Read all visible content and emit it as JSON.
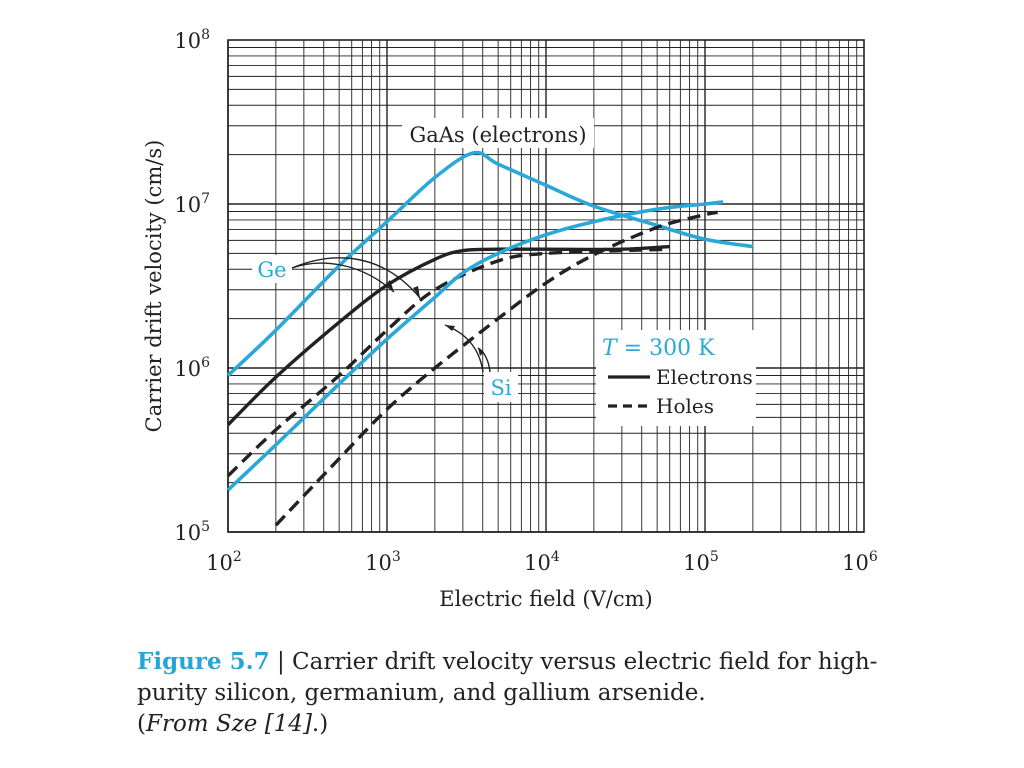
{
  "chart_data": {
    "type": "line",
    "x_scale": "log",
    "y_scale": "log",
    "xlim": [
      100,
      1000000
    ],
    "ylim": [
      100000,
      100000000
    ],
    "x_ticks": [
      {
        "base": "10",
        "exp": "2"
      },
      {
        "base": "10",
        "exp": "3"
      },
      {
        "base": "10",
        "exp": "4"
      },
      {
        "base": "10",
        "exp": "5"
      },
      {
        "base": "10",
        "exp": "6"
      }
    ],
    "y_ticks": [
      {
        "base": "10",
        "exp": "5"
      },
      {
        "base": "10",
        "exp": "6"
      },
      {
        "base": "10",
        "exp": "7"
      },
      {
        "base": "10",
        "exp": "8"
      }
    ],
    "xlabel": "Electric field (V/cm)",
    "ylabel": "Carrier drift velocity (cm/s)",
    "grid": true,
    "annotations": {
      "gaas": "GaAs (electrons)",
      "ge": "Ge",
      "si": "Si"
    },
    "legend": {
      "position": "right-middle",
      "temperature_italic": "T",
      "temperature_rest": " = 300 K",
      "electrons": "Electrons",
      "holes": "Holes"
    },
    "colors": {
      "material_blue": "#2aa8d8",
      "black": "#222222",
      "grid": "#222222"
    },
    "series": [
      {
        "name": "GaAs (electrons)",
        "material": "GaAs",
        "carrier": "electrons",
        "style": "solid",
        "color": "blue",
        "points": [
          [
            100,
            900000
          ],
          [
            200,
            1700000
          ],
          [
            500,
            4200000
          ],
          [
            1000,
            7800000
          ],
          [
            2000,
            14500000
          ],
          [
            3500,
            20500000
          ],
          [
            5000,
            17500000
          ],
          [
            10000,
            13000000
          ],
          [
            20000,
            9700000
          ],
          [
            50000,
            7400000
          ],
          [
            100000,
            6100000
          ],
          [
            200000,
            5500000
          ]
        ]
      },
      {
        "name": "Ge electrons",
        "material": "Ge",
        "carrier": "electrons",
        "style": "solid",
        "color": "black",
        "points": [
          [
            100,
            450000
          ],
          [
            200,
            880000
          ],
          [
            500,
            1900000
          ],
          [
            1000,
            3200000
          ],
          [
            2000,
            4600000
          ],
          [
            3000,
            5200000
          ],
          [
            5000,
            5300000
          ],
          [
            10000,
            5300000
          ],
          [
            30000,
            5300000
          ],
          [
            60000,
            5500000
          ]
        ]
      },
      {
        "name": "Ge holes",
        "material": "Ge",
        "carrier": "holes",
        "style": "dashed",
        "color": "black",
        "points": [
          [
            100,
            220000
          ],
          [
            200,
            420000
          ],
          [
            500,
            900000
          ],
          [
            1000,
            1700000
          ],
          [
            2000,
            3000000
          ],
          [
            5000,
            4500000
          ],
          [
            10000,
            5000000
          ],
          [
            30000,
            5200000
          ],
          [
            60000,
            5300000
          ]
        ]
      },
      {
        "name": "Si electrons",
        "material": "Si",
        "carrier": "electrons",
        "style": "solid",
        "color": "blue",
        "points": [
          [
            100,
            180000
          ],
          [
            200,
            340000
          ],
          [
            500,
            800000
          ],
          [
            1000,
            1500000
          ],
          [
            2000,
            2700000
          ],
          [
            3000,
            3800000
          ],
          [
            5000,
            5000000
          ],
          [
            10000,
            6500000
          ],
          [
            20000,
            7800000
          ],
          [
            50000,
            9300000
          ],
          [
            100000,
            10000000
          ],
          [
            130000,
            10300000
          ]
        ]
      },
      {
        "name": "Si holes",
        "material": "Si",
        "carrier": "holes",
        "style": "dashed",
        "color": "black",
        "points": [
          [
            200,
            110000
          ],
          [
            500,
            280000
          ],
          [
            1000,
            560000
          ],
          [
            2000,
            1000000
          ],
          [
            5000,
            2000000
          ],
          [
            10000,
            3300000
          ],
          [
            20000,
            4900000
          ],
          [
            50000,
            7200000
          ],
          [
            100000,
            8600000
          ],
          [
            120000,
            8900000
          ]
        ]
      }
    ]
  },
  "caption": {
    "figure_label": "Figure 5.7",
    "separator": " | ",
    "text": "Carrier drift velocity versus electric field for high-purity silicon, germanium, and gallium arsenide.",
    "source_open": "(",
    "source_italic": "From Sze [14]",
    "source_close": ".)"
  }
}
